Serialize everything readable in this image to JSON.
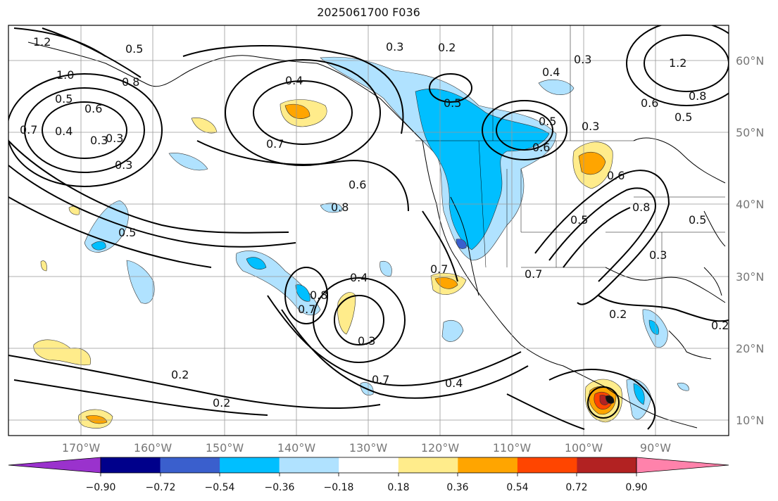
{
  "title": "2025061700 F036",
  "map": {
    "lon_labels": [
      "170°W",
      "160°W",
      "150°W",
      "140°W",
      "130°W",
      "120°W",
      "110°W",
      "100°W",
      "90°W"
    ],
    "lat_labels": [
      "60°N",
      "50°N",
      "40°N",
      "30°N",
      "20°N",
      "10°N"
    ],
    "contour_labels": [
      "1.2",
      "1.0",
      "0.5",
      "0.7",
      "0.4",
      "0.3",
      "0.8",
      "0.4",
      "0.7",
      "0.5",
      "0.3",
      "0.2",
      "0.3",
      "0.4",
      "0.5",
      "0.6",
      "0.3",
      "0.6",
      "0.5",
      "0.8",
      "0.6",
      "0.8",
      "0.5",
      "0.7",
      "0.8",
      "0.7",
      "0.4",
      "0.3",
      "0.7",
      "0.2",
      "0.4",
      "0.2",
      "0.7",
      "0.3",
      "0.5",
      "0.6",
      "0.5",
      "1.2",
      "0.8",
      "0.6",
      "0.5",
      "0.3",
      "0.3",
      "0.2",
      "0.2"
    ]
  },
  "colorbar": {
    "tick_labels": [
      "−0.90",
      "−0.72",
      "−0.54",
      "−0.36",
      "−0.18",
      "0.18",
      "0.36",
      "0.54",
      "0.72",
      "0.90"
    ],
    "colors": [
      "#9a32cd",
      "#00008b",
      "#3a5fcd",
      "#00bfff",
      "#b0e2ff",
      "#ffffff",
      "#ffec8b",
      "#ffa500",
      "#ff4500",
      "#b22222",
      "#ff82ab"
    ]
  }
}
